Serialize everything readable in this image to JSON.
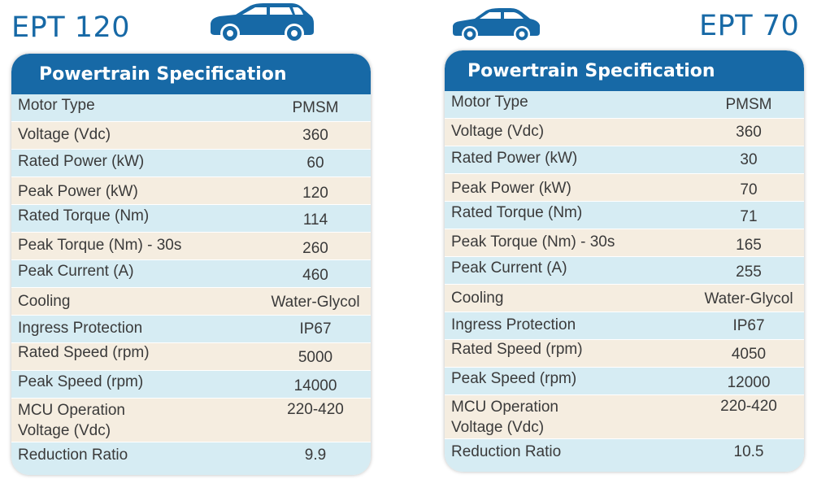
{
  "left": {
    "model": "EPT 120",
    "header": "Powertrain Specification",
    "rows": [
      {
        "label": "Motor Type",
        "value": "PMSM"
      },
      {
        "label": "Voltage (Vdc)",
        "value": "360"
      },
      {
        "label": "Rated Power (kW)",
        "value": "60"
      },
      {
        "label": "Peak Power (kW)",
        "value": "120"
      },
      {
        "label": "Rated Torque (Nm)",
        "value": "114"
      },
      {
        "label": "Peak Torque (Nm) - 30s",
        "value": "260"
      },
      {
        "label": "Peak Current (A)",
        "value": "460"
      },
      {
        "label": "Cooling",
        "value": "Water-Glycol"
      },
      {
        "label": "Ingress Protection",
        "value": "IP67"
      },
      {
        "label": "Rated Speed (rpm)",
        "value": "5000"
      },
      {
        "label": "Peak Speed (rpm)",
        "value": "14000"
      },
      {
        "label": "MCU Operation Voltage (Vdc)",
        "value": "220-420"
      },
      {
        "label": "Reduction Ratio",
        "value": "9.9"
      }
    ]
  },
  "right": {
    "model": "EPT 70",
    "header": "Powertrain Specification",
    "rows": [
      {
        "label": "Motor Type",
        "value": "PMSM"
      },
      {
        "label": "Voltage (Vdc)",
        "value": "360"
      },
      {
        "label": "Rated Power (kW)",
        "value": "30"
      },
      {
        "label": "Peak Power (kW)",
        "value": "70"
      },
      {
        "label": "Rated Torque (Nm)",
        "value": "71"
      },
      {
        "label": "Peak Torque (Nm) - 30s",
        "value": "165"
      },
      {
        "label": "Peak Current (A)",
        "value": "255"
      },
      {
        "label": "Cooling",
        "value": "Water-Glycol"
      },
      {
        "label": "Ingress Protection",
        "value": "IP67"
      },
      {
        "label": "Rated Speed (rpm)",
        "value": "4050"
      },
      {
        "label": "Peak Speed (rpm)",
        "value": "12000"
      },
      {
        "label": "MCU Operation Voltage (Vdc)",
        "value": "220-420"
      },
      {
        "label": "Reduction Ratio",
        "value": "10.5"
      }
    ]
  },
  "colors": {
    "brand_blue": "#1769a6",
    "row_blue": "#d6ecf3",
    "row_cream": "#f5ede0"
  },
  "icons": {
    "left": "suv-car-icon",
    "right": "sedan-car-icon"
  }
}
